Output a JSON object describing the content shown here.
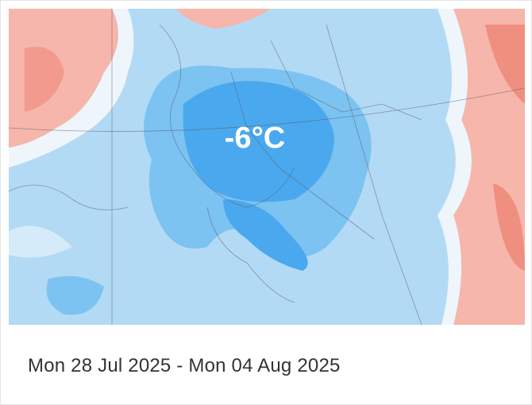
{
  "map": {
    "label": "-6°C"
  },
  "caption": "Mon 28 Jul 2025 - Mon 04 Aug 2025"
}
